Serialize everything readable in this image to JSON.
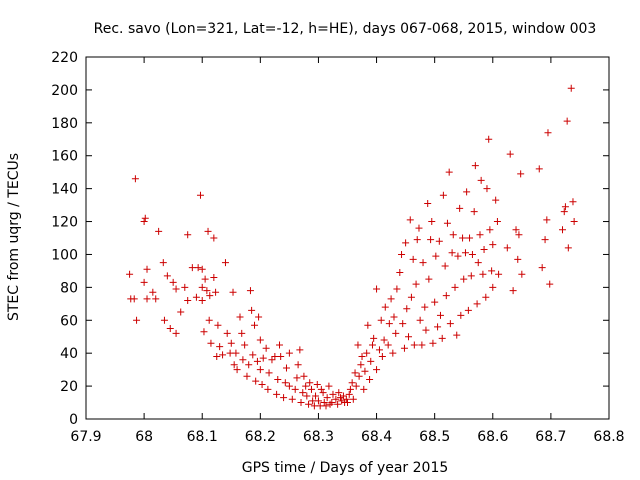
{
  "chart_data": {
    "type": "scatter",
    "title": "Rec. savo (Lon=321, Lat=-12, h=HE), days 067-068, 2015, window 003",
    "xlabel": "GPS time / Days of year 2015",
    "ylabel": "STEC from uqrg / TECUs",
    "xlim": [
      67.9,
      68.8
    ],
    "ylim": [
      0,
      220
    ],
    "xticks": [
      "67.9",
      "68",
      "68.1",
      "68.2",
      "68.3",
      "68.4",
      "68.5",
      "68.6",
      "68.7",
      "68.8"
    ],
    "yticks": [
      "0",
      "20",
      "40",
      "60",
      "80",
      "100",
      "120",
      "140",
      "160",
      "180",
      "200",
      "220"
    ],
    "grid": false,
    "legend": "none",
    "marker": "plus",
    "color": "#cc0000",
    "series": [
      {
        "points": [
          [
            67.975,
            88
          ],
          [
            67.977,
            73
          ],
          [
            67.983,
            73
          ],
          [
            67.985,
            146
          ],
          [
            67.987,
            60
          ],
          [
            68.0,
            120
          ],
          [
            68.002,
            122
          ],
          [
            68.005,
            91
          ],
          [
            68.0,
            83
          ],
          [
            68.005,
            73
          ],
          [
            68.015,
            77
          ],
          [
            68.02,
            73
          ],
          [
            68.025,
            114
          ],
          [
            68.033,
            95
          ],
          [
            68.035,
            60
          ],
          [
            68.04,
            87
          ],
          [
            68.045,
            55
          ],
          [
            68.05,
            83
          ],
          [
            68.055,
            52
          ],
          [
            68.055,
            79
          ],
          [
            68.063,
            65
          ],
          [
            68.07,
            80
          ],
          [
            68.075,
            72
          ],
          [
            68.075,
            112
          ],
          [
            68.083,
            92
          ],
          [
            68.09,
            74
          ],
          [
            68.093,
            92
          ],
          [
            68.097,
            136
          ],
          [
            68.1,
            91
          ],
          [
            68.1,
            80
          ],
          [
            68.1,
            72
          ],
          [
            68.103,
            53
          ],
          [
            68.105,
            85
          ],
          [
            68.108,
            78
          ],
          [
            68.11,
            114
          ],
          [
            68.112,
            60
          ],
          [
            68.113,
            75
          ],
          [
            68.115,
            46
          ],
          [
            68.12,
            110
          ],
          [
            68.12,
            86
          ],
          [
            68.123,
            77
          ],
          [
            68.125,
            38
          ],
          [
            68.127,
            57
          ],
          [
            68.13,
            44
          ],
          [
            68.135,
            39
          ],
          [
            68.14,
            95
          ],
          [
            68.143,
            52
          ],
          [
            68.148,
            40
          ],
          [
            68.15,
            46
          ],
          [
            68.153,
            77
          ],
          [
            68.155,
            33
          ],
          [
            68.158,
            40
          ],
          [
            68.16,
            30
          ],
          [
            68.165,
            62
          ],
          [
            68.168,
            52
          ],
          [
            68.17,
            36
          ],
          [
            68.173,
            45
          ],
          [
            68.177,
            26
          ],
          [
            68.18,
            33
          ],
          [
            68.183,
            78
          ],
          [
            68.185,
            66
          ],
          [
            68.187,
            39
          ],
          [
            68.19,
            57
          ],
          [
            68.192,
            23
          ],
          [
            68.195,
            35
          ],
          [
            68.197,
            62
          ],
          [
            68.2,
            48
          ],
          [
            68.2,
            30
          ],
          [
            68.203,
            21
          ],
          [
            68.205,
            37
          ],
          [
            68.21,
            43
          ],
          [
            68.213,
            18
          ],
          [
            68.215,
            28
          ],
          [
            68.22,
            36
          ],
          [
            68.225,
            38
          ],
          [
            68.228,
            15
          ],
          [
            68.23,
            24
          ],
          [
            68.233,
            45
          ],
          [
            68.235,
            38
          ],
          [
            68.24,
            13
          ],
          [
            68.243,
            22
          ],
          [
            68.245,
            31
          ],
          [
            68.25,
            20
          ],
          [
            68.25,
            40
          ],
          [
            68.255,
            12
          ],
          [
            68.26,
            18
          ],
          [
            68.263,
            25
          ],
          [
            68.265,
            33
          ],
          [
            68.268,
            42
          ],
          [
            68.27,
            10
          ],
          [
            68.273,
            16
          ],
          [
            68.275,
            26
          ],
          [
            68.278,
            20
          ],
          [
            68.28,
            14
          ],
          [
            68.283,
            9
          ],
          [
            68.285,
            22
          ],
          [
            68.288,
            18
          ],
          [
            68.29,
            11
          ],
          [
            68.293,
            8
          ],
          [
            68.295,
            14
          ],
          [
            68.298,
            21
          ],
          [
            68.3,
            11
          ],
          [
            68.303,
            8
          ],
          [
            68.305,
            18
          ],
          [
            68.308,
            16
          ],
          [
            68.31,
            10
          ],
          [
            68.313,
            8
          ],
          [
            68.315,
            13
          ],
          [
            68.318,
            20
          ],
          [
            68.32,
            9
          ],
          [
            68.323,
            10
          ],
          [
            68.325,
            15
          ],
          [
            68.33,
            12
          ],
          [
            68.333,
            9
          ],
          [
            68.335,
            16
          ],
          [
            68.338,
            13
          ],
          [
            68.34,
            11
          ],
          [
            68.343,
            14
          ],
          [
            68.345,
            10
          ],
          [
            68.348,
            12
          ],
          [
            68.35,
            10
          ],
          [
            68.353,
            15
          ],
          [
            68.355,
            18
          ],
          [
            68.358,
            22
          ],
          [
            68.36,
            12
          ],
          [
            68.363,
            28
          ],
          [
            68.365,
            20
          ],
          [
            68.368,
            45
          ],
          [
            68.37,
            26
          ],
          [
            68.373,
            33
          ],
          [
            68.375,
            38
          ],
          [
            68.378,
            18
          ],
          [
            68.38,
            29
          ],
          [
            68.383,
            40
          ],
          [
            68.385,
            57
          ],
          [
            68.388,
            24
          ],
          [
            68.39,
            35
          ],
          [
            68.393,
            45
          ],
          [
            68.395,
            49
          ],
          [
            68.4,
            30
          ],
          [
            68.4,
            79
          ],
          [
            68.405,
            42
          ],
          [
            68.408,
            60
          ],
          [
            68.41,
            38
          ],
          [
            68.413,
            48
          ],
          [
            68.415,
            68
          ],
          [
            68.42,
            45
          ],
          [
            68.422,
            58
          ],
          [
            68.425,
            73
          ],
          [
            68.428,
            40
          ],
          [
            68.43,
            62
          ],
          [
            68.433,
            52
          ],
          [
            68.435,
            79
          ],
          [
            68.44,
            89
          ],
          [
            68.443,
            100
          ],
          [
            68.445,
            58
          ],
          [
            68.448,
            43
          ],
          [
            68.45,
            107
          ],
          [
            68.452,
            67
          ],
          [
            68.455,
            50
          ],
          [
            68.458,
            121
          ],
          [
            68.46,
            74
          ],
          [
            68.463,
            97
          ],
          [
            68.465,
            45
          ],
          [
            68.468,
            82
          ],
          [
            68.47,
            109
          ],
          [
            68.473,
            116
          ],
          [
            68.475,
            60
          ],
          [
            68.478,
            45
          ],
          [
            68.48,
            95
          ],
          [
            68.483,
            68
          ],
          [
            68.485,
            54
          ],
          [
            68.488,
            131
          ],
          [
            68.49,
            85
          ],
          [
            68.493,
            109
          ],
          [
            68.495,
            120
          ],
          [
            68.497,
            46
          ],
          [
            68.5,
            71
          ],
          [
            68.502,
            99
          ],
          [
            68.505,
            56
          ],
          [
            68.508,
            108
          ],
          [
            68.51,
            63
          ],
          [
            68.513,
            49
          ],
          [
            68.515,
            136
          ],
          [
            68.518,
            93
          ],
          [
            68.52,
            75
          ],
          [
            68.522,
            119
          ],
          [
            68.525,
            150
          ],
          [
            68.527,
            58
          ],
          [
            68.53,
            101
          ],
          [
            68.532,
            112
          ],
          [
            68.535,
            80
          ],
          [
            68.538,
            51
          ],
          [
            68.54,
            99
          ],
          [
            68.543,
            128
          ],
          [
            68.545,
            63
          ],
          [
            68.548,
            110
          ],
          [
            68.55,
            85
          ],
          [
            68.553,
            101
          ],
          [
            68.555,
            138
          ],
          [
            68.558,
            66
          ],
          [
            68.56,
            110
          ],
          [
            68.563,
            87
          ],
          [
            68.565,
            100
          ],
          [
            68.568,
            126
          ],
          [
            68.57,
            154
          ],
          [
            68.573,
            70
          ],
          [
            68.575,
            95
          ],
          [
            68.578,
            112
          ],
          [
            68.58,
            145
          ],
          [
            68.583,
            88
          ],
          [
            68.585,
            103
          ],
          [
            68.588,
            74
          ],
          [
            68.59,
            140
          ],
          [
            68.593,
            170
          ],
          [
            68.595,
            115
          ],
          [
            68.598,
            90
          ],
          [
            68.6,
            80
          ],
          [
            68.6,
            106
          ],
          [
            68.605,
            133
          ],
          [
            68.608,
            120
          ],
          [
            68.61,
            88
          ],
          [
            68.625,
            104
          ],
          [
            68.63,
            161
          ],
          [
            68.635,
            78
          ],
          [
            68.64,
            115
          ],
          [
            68.643,
            97
          ],
          [
            68.645,
            112
          ],
          [
            68.648,
            149
          ],
          [
            68.65,
            88
          ],
          [
            68.68,
            152
          ],
          [
            68.685,
            92
          ],
          [
            68.69,
            109
          ],
          [
            68.693,
            121
          ],
          [
            68.695,
            174
          ],
          [
            68.698,
            82
          ],
          [
            68.72,
            115
          ],
          [
            68.723,
            126
          ],
          [
            68.725,
            129
          ],
          [
            68.728,
            181
          ],
          [
            68.73,
            104
          ],
          [
            68.735,
            201
          ],
          [
            68.738,
            132
          ],
          [
            68.74,
            120
          ]
        ]
      }
    ]
  }
}
